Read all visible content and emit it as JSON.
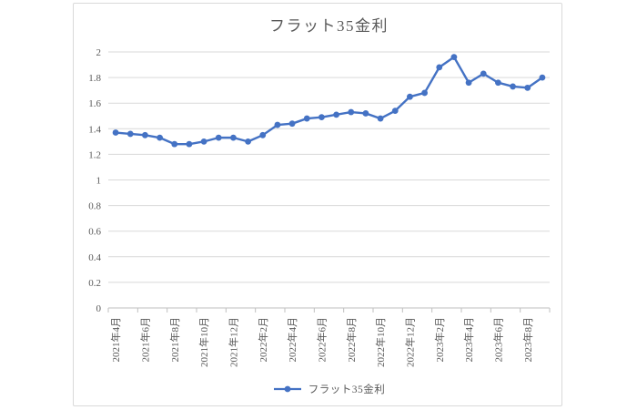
{
  "chart_data": {
    "type": "line",
    "title": "フラット35金利",
    "x": [
      "2021年4月",
      "2021年5月",
      "2021年6月",
      "2021年7月",
      "2021年8月",
      "2021年9月",
      "2021年10月",
      "2021年11月",
      "2021年12月",
      "2022年1月",
      "2022年2月",
      "2022年3月",
      "2022年4月",
      "2022年5月",
      "2022年6月",
      "2022年7月",
      "2022年8月",
      "2022年9月",
      "2022年10月",
      "2022年11月",
      "2022年12月",
      "2023年1月",
      "2023年2月",
      "2023年3月",
      "2023年4月",
      "2023年5月",
      "2023年6月",
      "2023年7月",
      "2023年8月",
      "2023年9月"
    ],
    "series": [
      {
        "name": "フラット35金利",
        "values": [
          1.37,
          1.36,
          1.35,
          1.33,
          1.28,
          1.28,
          1.3,
          1.33,
          1.33,
          1.3,
          1.35,
          1.43,
          1.44,
          1.48,
          1.49,
          1.51,
          1.53,
          1.52,
          1.48,
          1.54,
          1.65,
          1.68,
          1.88,
          1.96,
          1.76,
          1.83,
          1.76,
          1.73,
          1.72,
          1.8
        ]
      }
    ],
    "xlabel": "",
    "ylabel": "",
    "ylim": [
      0,
      2
    ],
    "ytick_labels": [
      "2",
      "1.8",
      "1.6",
      "1.4",
      "1.2",
      "1",
      "0.8",
      "0.6",
      "0.4",
      "0.2",
      "0"
    ],
    "x_tick_label_every": 2,
    "grid": true,
    "legend": {
      "label": "フラット35金利",
      "position": "bottom"
    },
    "colors": {
      "line": "#4472C4",
      "text": "#595959",
      "grid": "#d9d9d9",
      "axis": "#bfbfbf"
    }
  }
}
